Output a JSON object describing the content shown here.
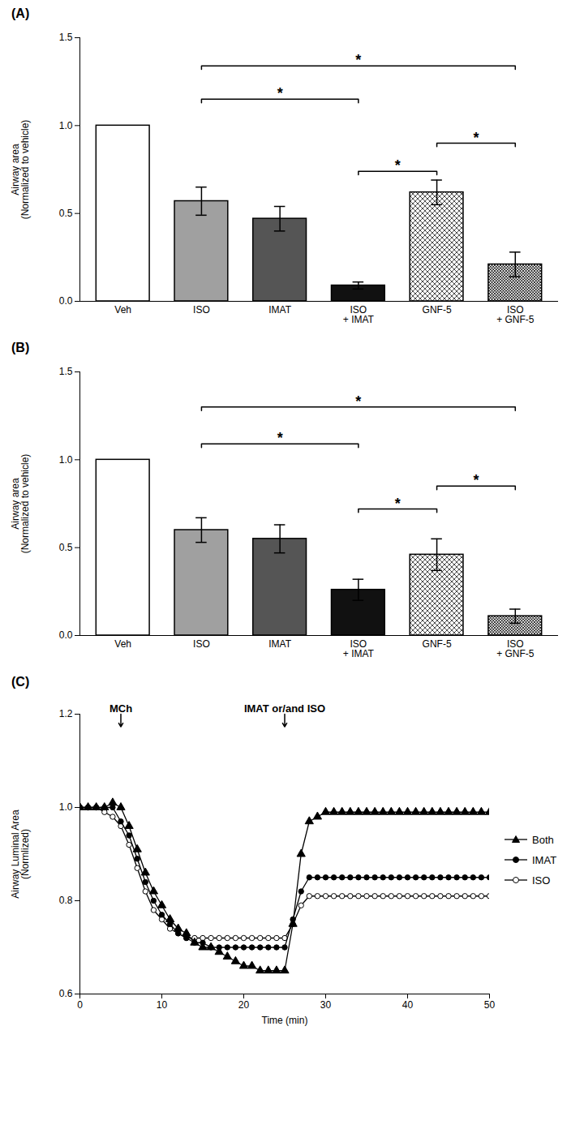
{
  "chart_data": [
    {
      "type": "bar",
      "title": "(A)",
      "categories": [
        "Veh",
        "ISO",
        "IMAT",
        "ISO\n+ IMAT",
        "GNF-5",
        "ISO\n+ GNF-5"
      ],
      "values": [
        1.0,
        0.57,
        0.47,
        0.09,
        0.62,
        0.21
      ],
      "errors": [
        0.0,
        0.08,
        0.07,
        0.02,
        0.07,
        0.07
      ],
      "colors": [
        "white",
        "#a0a0a0",
        "#555555",
        "#111111",
        "crosshatch_light",
        "crosshatch_dark"
      ],
      "ylabel": "Airway area\n(Normalized to vehicle)",
      "ylim": [
        0,
        1.5
      ],
      "yticks": [
        {
          "value": 0,
          "label": "0.0"
        },
        0.5,
        {
          "value": 1,
          "label": "1.0"
        },
        1.5
      ],
      "grid": false,
      "brackets": [
        {
          "from": "ISO",
          "to": "ISO\n+ IMAT",
          "y": 1.13,
          "label": "*"
        },
        {
          "from": "ISO",
          "to": "ISO\n+ GNF-5",
          "y": 1.32,
          "label": "*"
        },
        {
          "from": "ISO\n+ IMAT",
          "to": "GNF-5",
          "y": 0.72,
          "label": "*"
        },
        {
          "from": "GNF-5",
          "to": "ISO\n+ GNF-5",
          "y": 0.88,
          "label": "*"
        }
      ]
    },
    {
      "type": "bar",
      "title": "(B)",
      "categories": [
        "Veh",
        "ISO",
        "IMAT",
        "ISO\n+ IMAT",
        "GNF-5",
        "ISO\n+ GNF-5"
      ],
      "values": [
        1.0,
        0.6,
        0.55,
        0.26,
        0.46,
        0.11
      ],
      "errors": [
        0.0,
        0.07,
        0.08,
        0.06,
        0.09,
        0.04
      ],
      "colors": [
        "white",
        "#a0a0a0",
        "#555555",
        "#111111",
        "crosshatch_light",
        "crosshatch_dark"
      ],
      "ylabel": "Airway area\n(Normalized to vehicle)",
      "ylim": [
        0,
        1.5
      ],
      "yticks": [
        {
          "value": 0,
          "label": "0.0"
        },
        0.5,
        {
          "value": 1,
          "label": "1.0"
        },
        1.5
      ],
      "grid": false,
      "brackets": [
        {
          "from": "ISO",
          "to": "ISO\n+ IMAT",
          "y": 1.07,
          "label": "*"
        },
        {
          "from": "ISO",
          "to": "ISO\n+ GNF-5",
          "y": 1.28,
          "label": "*"
        },
        {
          "from": "ISO\n+ IMAT",
          "to": "GNF-5",
          "y": 0.7,
          "label": "*"
        },
        {
          "from": "GNF-5",
          "to": "ISO\n+ GNF-5",
          "y": 0.83,
          "label": "*"
        }
      ]
    },
    {
      "type": "line",
      "title": "(C)",
      "xlabel": "Time (min)",
      "ylabel": "Airway Luminal Area\n(Normlized)",
      "xlim": [
        0,
        50
      ],
      "ylim": [
        0.6,
        1.2
      ],
      "xticks": [
        0,
        10,
        20,
        30,
        40,
        50
      ],
      "yticks": [
        0.6,
        0.8,
        {
          "value": 1,
          "label": "1.0"
        },
        1.2
      ],
      "grid": false,
      "legend": "right",
      "x": [
        0,
        1,
        2,
        3,
        4,
        5,
        6,
        7,
        8,
        9,
        10,
        11,
        12,
        13,
        14,
        15,
        16,
        17,
        18,
        19,
        20,
        21,
        22,
        23,
        24,
        25,
        26,
        27,
        28,
        29,
        30,
        31,
        32,
        33,
        34,
        35,
        36,
        37,
        38,
        39,
        40,
        41,
        42,
        43,
        44,
        45,
        46,
        47,
        48,
        49,
        50
      ],
      "series": [
        {
          "name": "ISO",
          "color": "black",
          "marker": "open_circle",
          "values": [
            1.0,
            1.0,
            1.0,
            0.99,
            0.98,
            0.96,
            0.92,
            0.87,
            0.82,
            0.78,
            0.76,
            0.74,
            0.73,
            0.72,
            0.72,
            0.72,
            0.72,
            0.72,
            0.72,
            0.72,
            0.72,
            0.72,
            0.72,
            0.72,
            0.72,
            0.72,
            0.75,
            0.79,
            0.81,
            0.81,
            0.81,
            0.81,
            0.81,
            0.81,
            0.81,
            0.81,
            0.81,
            0.81,
            0.81,
            0.81,
            0.81,
            0.81,
            0.81,
            0.81,
            0.81,
            0.81,
            0.81,
            0.81,
            0.81,
            0.81,
            0.81
          ]
        },
        {
          "name": "IMAT",
          "color": "black",
          "marker": "circle",
          "values": [
            1.0,
            1.0,
            1.0,
            1.0,
            1.0,
            0.97,
            0.94,
            0.89,
            0.84,
            0.8,
            0.77,
            0.75,
            0.73,
            0.72,
            0.71,
            0.71,
            0.7,
            0.7,
            0.7,
            0.7,
            0.7,
            0.7,
            0.7,
            0.7,
            0.7,
            0.7,
            0.76,
            0.82,
            0.85,
            0.85,
            0.85,
            0.85,
            0.85,
            0.85,
            0.85,
            0.85,
            0.85,
            0.85,
            0.85,
            0.85,
            0.85,
            0.85,
            0.85,
            0.85,
            0.85,
            0.85,
            0.85,
            0.85,
            0.85,
            0.85,
            0.85
          ]
        },
        {
          "name": "Both",
          "color": "black",
          "marker": "triangle",
          "values": [
            1.0,
            1.0,
            1.0,
            1.0,
            1.01,
            1.0,
            0.96,
            0.91,
            0.86,
            0.82,
            0.79,
            0.76,
            0.74,
            0.73,
            0.71,
            0.7,
            0.7,
            0.69,
            0.68,
            0.67,
            0.66,
            0.66,
            0.65,
            0.65,
            0.65,
            0.65,
            0.75,
            0.9,
            0.97,
            0.98,
            0.99,
            0.99,
            0.99,
            0.99,
            0.99,
            0.99,
            0.99,
            0.99,
            0.99,
            0.99,
            0.99,
            0.99,
            0.99,
            0.99,
            0.99,
            0.99,
            0.99,
            0.99,
            0.99,
            0.99,
            0.99
          ]
        }
      ],
      "annotations": [
        {
          "x": 5,
          "y": 1.2,
          "text": "MCh"
        },
        {
          "x": 25,
          "y": 1.2,
          "text": "IMAT or/and ISO"
        }
      ]
    }
  ]
}
